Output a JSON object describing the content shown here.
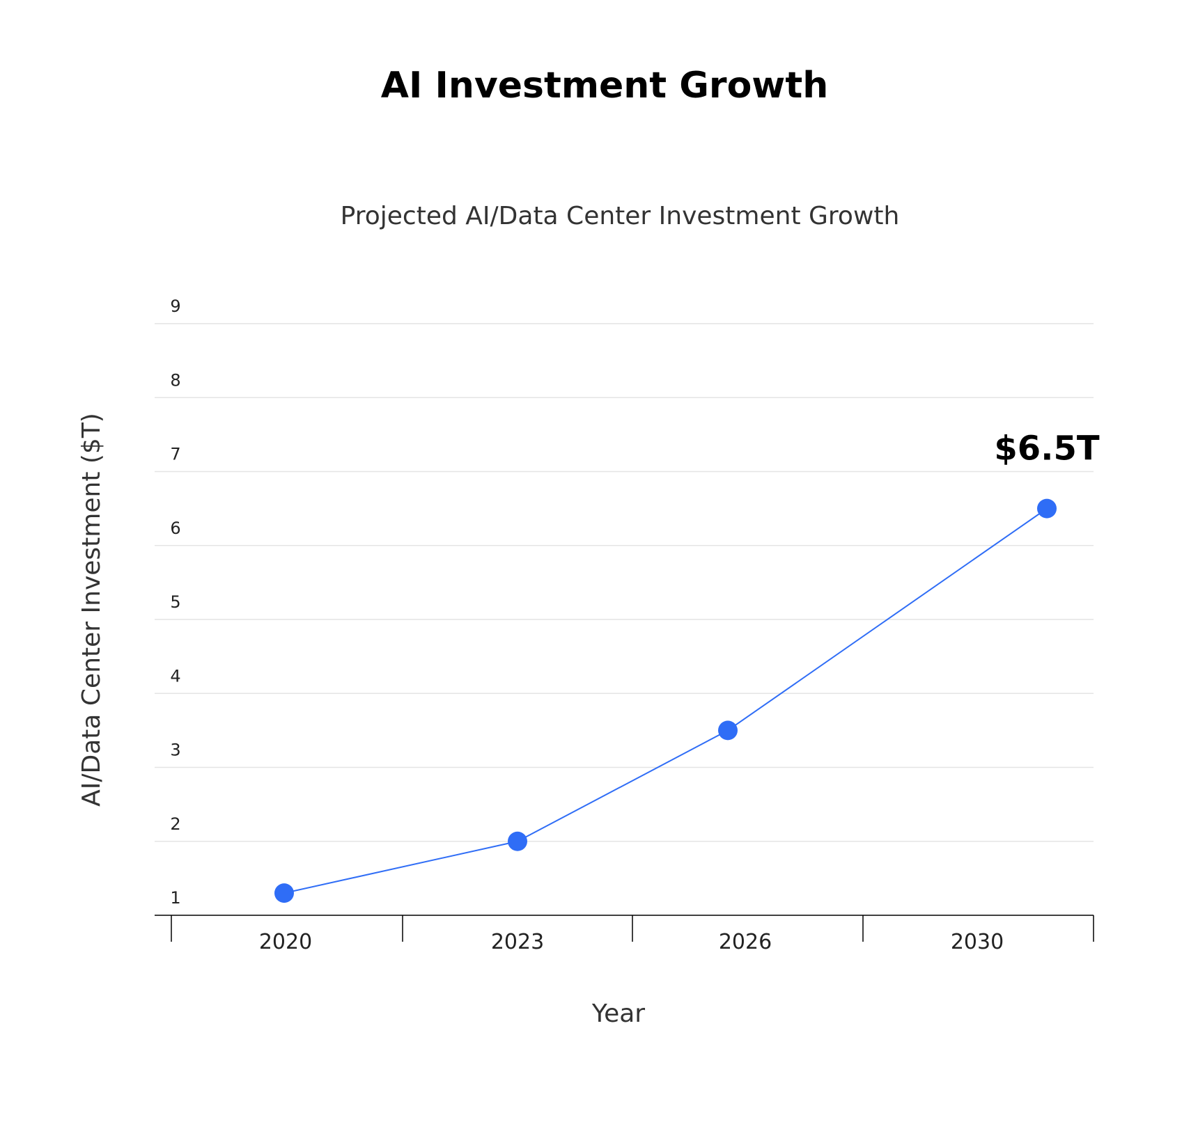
{
  "chart_data": {
    "type": "line",
    "title": "AI Investment Growth",
    "subtitle": "Projected AI/Data Center Investment Growth",
    "xlabel": "Year",
    "ylabel": "AI/Data Center Investment ($T)",
    "categories": [
      "2020",
      "2023",
      "2026",
      "2030"
    ],
    "x_ticks": [
      "2020",
      "2023",
      "2026",
      "2030"
    ],
    "x": [
      "2020",
      "2023",
      "2026",
      "2030"
    ],
    "series": [
      {
        "values": [
          1.3,
          2.0,
          3.5,
          6.5
        ],
        "color": "#2f6df6"
      }
    ],
    "y_ticks": [
      1,
      2,
      3,
      4,
      5,
      6,
      7,
      8,
      9
    ],
    "ylim": [
      1,
      9
    ],
    "grid": true,
    "annotations": [
      {
        "text": "$6.5T",
        "x": "2030",
        "y": 6.5
      }
    ],
    "colors": {
      "line": "#2f6df6",
      "marker": "#2f6df6",
      "gridline": "#e4e4e4",
      "axis": "#000000"
    }
  }
}
